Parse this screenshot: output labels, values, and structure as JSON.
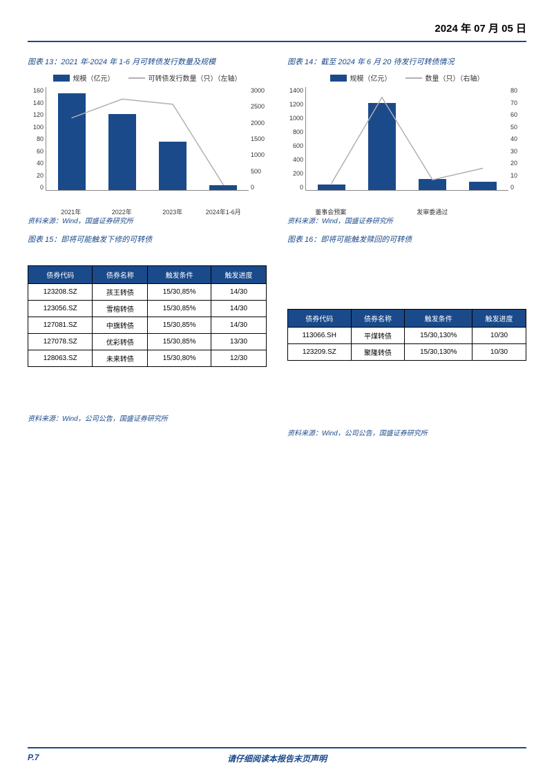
{
  "header": {
    "date": "2024 年 07 月 05 日"
  },
  "chart13": {
    "title_prefix": "图表 13：",
    "title": "2021 年-2024 年 1-6 月可转债发行数量及规模",
    "legend_bar": "规模（亿元）",
    "legend_line": "可转债发行数量（只）（左轴）",
    "bar_color": "#1a4a8a",
    "line_color": "#b0b0b0",
    "categories": [
      "2021年",
      "2022年",
      "2023年",
      "2024年1-6月"
    ],
    "bar_values": [
      150,
      118,
      75,
      8
    ],
    "line_values": [
      2100,
      2650,
      2500,
      150
    ],
    "y_left_ticks": [
      "160",
      "140",
      "120",
      "100",
      "80",
      "60",
      "40",
      "20",
      "0"
    ],
    "y_right_ticks": [
      "3000",
      "2500",
      "2000",
      "1500",
      "1000",
      "500",
      "0"
    ],
    "y_left_max": 160,
    "y_right_max": 3000,
    "source": "资料来源：Wind，国盛证券研究所"
  },
  "chart14": {
    "title_prefix": "图表 14：",
    "title": "截至 2024 年 6 月 20 待发行可转债情况",
    "legend_bar": "规模（亿元）",
    "legend_line": "数量（只）（右轴）",
    "bar_color": "#1a4a8a",
    "line_color": "#b0b0b0",
    "categories": [
      "董事会预案",
      "",
      "发审委通过",
      ""
    ],
    "bar_values": [
      80,
      1180,
      150,
      110
    ],
    "line_values": [
      5,
      72,
      8,
      17
    ],
    "y_left_ticks": [
      "1400",
      "1200",
      "1000",
      "800",
      "600",
      "400",
      "200",
      "0"
    ],
    "y_right_ticks": [
      "80",
      "70",
      "60",
      "50",
      "40",
      "30",
      "20",
      "10",
      "0"
    ],
    "y_left_max": 1400,
    "y_right_max": 80,
    "source": "资料来源：Wind，国盛证券研究所"
  },
  "table15": {
    "title_prefix": "图表 15：",
    "title": "即将可能触发下修的可转债",
    "columns": [
      "债券代码",
      "债券名称",
      "触发条件",
      "触发进度"
    ],
    "rows": [
      [
        "123208.SZ",
        "孩王转债",
        "15/30,85%",
        "14/30"
      ],
      [
        "123056.SZ",
        "雪榕转债",
        "15/30,85%",
        "14/30"
      ],
      [
        "127081.SZ",
        "中旗转债",
        "15/30,85%",
        "14/30"
      ],
      [
        "127078.SZ",
        "优彩转债",
        "15/30,85%",
        "13/30"
      ],
      [
        "128063.SZ",
        "未来转债",
        "15/30,80%",
        "12/30"
      ]
    ],
    "source": "资料来源：Wind，公司公告，国盛证券研究所"
  },
  "table16": {
    "title_prefix": "图表 16：",
    "title": "即将可能触发赎回的可转债",
    "columns": [
      "债券代码",
      "债券名称",
      "触发条件",
      "触发进度"
    ],
    "rows": [
      [
        "113066.SH",
        "平煤转债",
        "15/30,130%",
        "10/30"
      ],
      [
        "123209.SZ",
        "聚隆转债",
        "15/30,130%",
        "10/30"
      ]
    ],
    "source": "资料来源：Wind，公司公告，国盛证券研究所"
  },
  "footer": {
    "page": "P.7",
    "disclaimer": "请仔细阅读本报告末页声明"
  }
}
